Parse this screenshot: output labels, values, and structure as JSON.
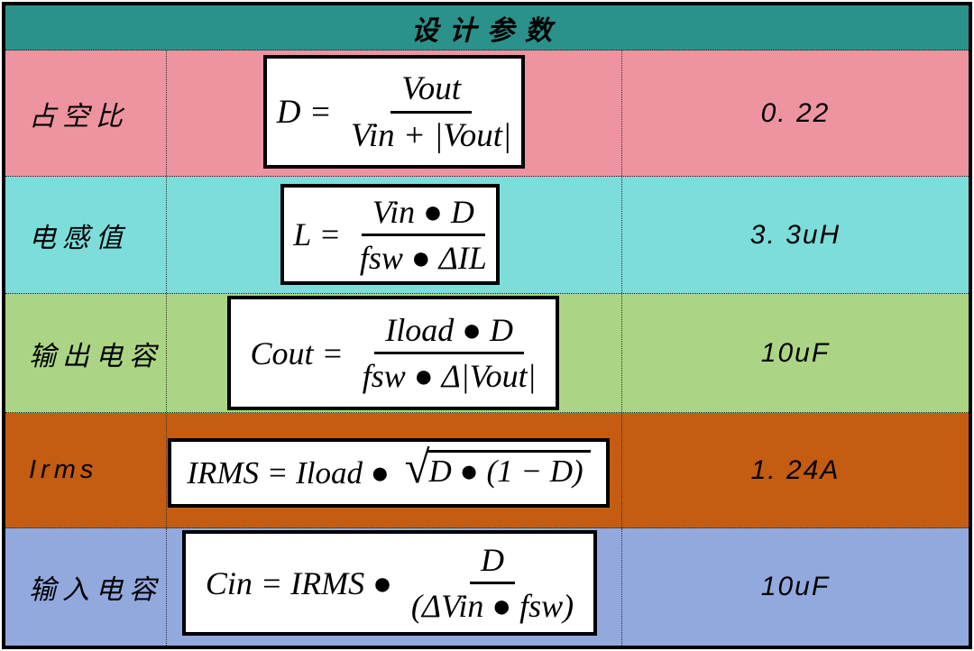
{
  "table": {
    "title": "设计参数",
    "rows": [
      {
        "label": "占空比",
        "value": "0. 22",
        "bg": "#ee93a0"
      },
      {
        "label": "电感值",
        "value": "3. 3uH",
        "bg": "#7cdddb"
      },
      {
        "label": "输出电容",
        "value": "10uF",
        "bg": "#abd584"
      },
      {
        "label": "Irms",
        "value": "1. 24A",
        "bg": "#c45c11"
      },
      {
        "label": "输入电容",
        "value": "10uF",
        "bg": "#92a9de"
      }
    ],
    "formulas": {
      "duty": {
        "lhs": "D = ",
        "num": "Vout",
        "den": "Vin + |Vout|"
      },
      "inductance": {
        "lhs": "L = ",
        "num": "Vin ● D",
        "den": "fsw ● ΔIL"
      },
      "cout": {
        "lhs": "Cout = ",
        "num": "Iload ● D",
        "den": "fsw ● Δ|Vout|"
      },
      "irms": {
        "pre": "IRMS = Iload ● ",
        "sqrt_sign": "√",
        "radicand": "D ● (1 − D)"
      },
      "cin": {
        "lhs": "Cin = IRMS ● ",
        "num": "D",
        "den": "(ΔVin ● fsw)"
      }
    },
    "colors": {
      "header_bg": "#2b918b",
      "border": "#000000",
      "formula_box_bg": "#ffffff"
    }
  }
}
